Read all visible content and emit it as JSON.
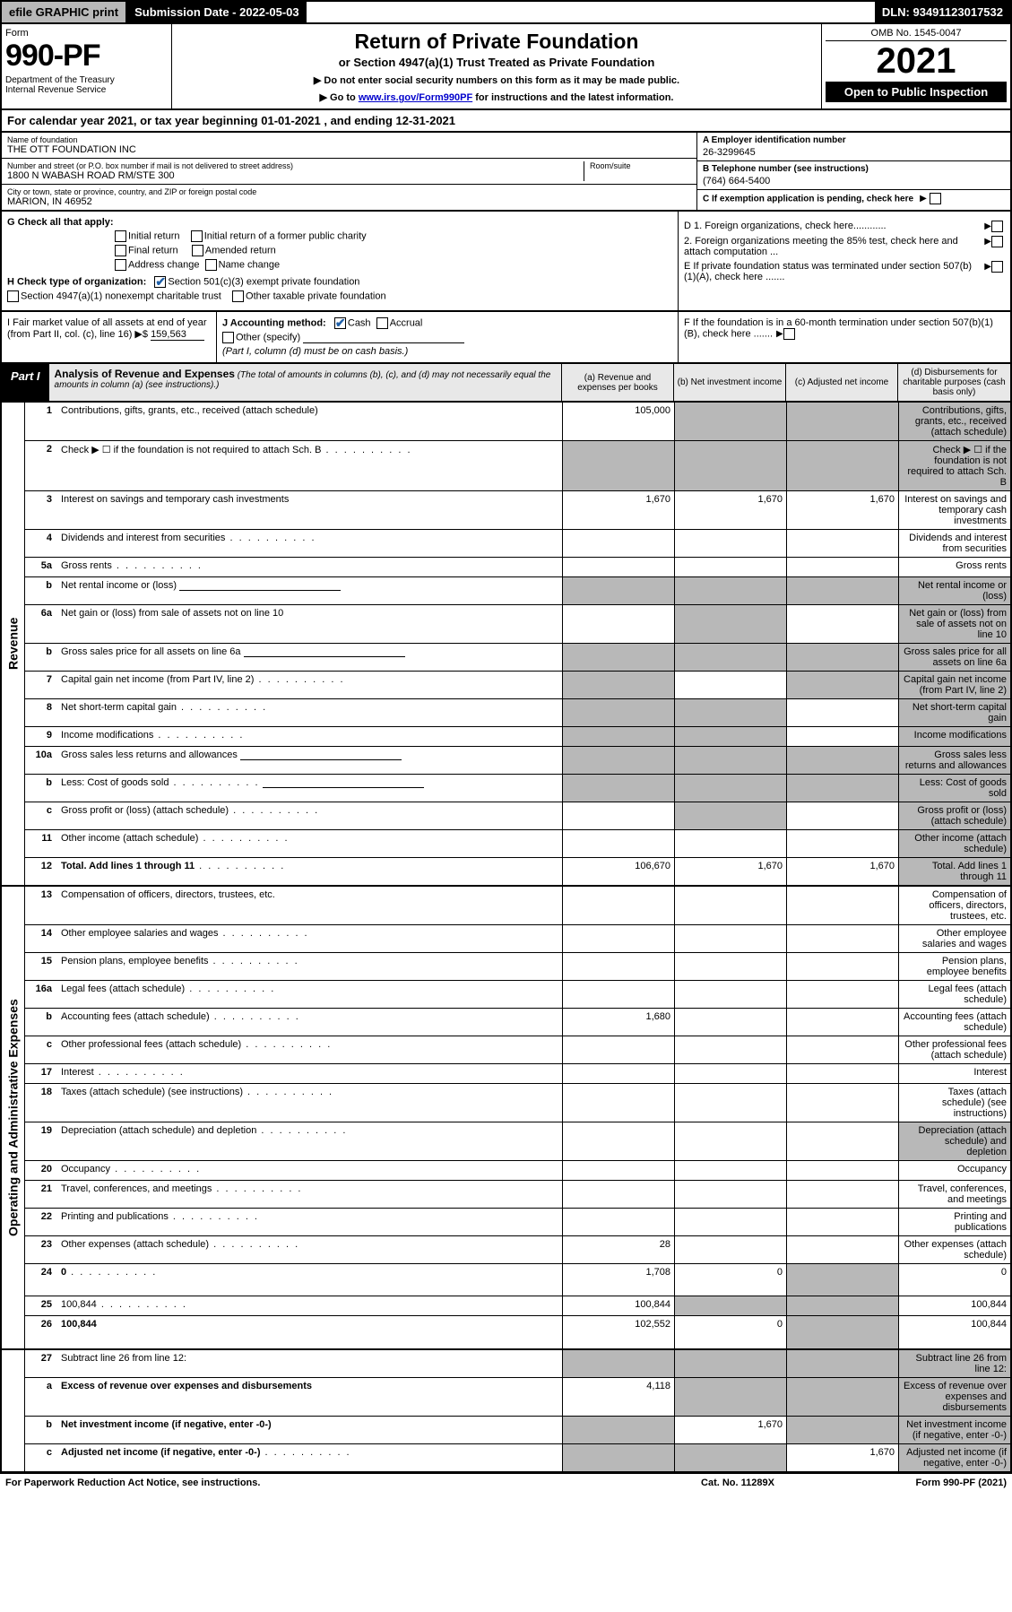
{
  "top": {
    "efile": "efile GRAPHIC print",
    "subdate_lbl": "Submission Date - ",
    "subdate": "2022-05-03",
    "dln_lbl": "DLN: ",
    "dln": "93491123017532"
  },
  "header": {
    "form": "Form",
    "formnum": "990-PF",
    "dept": "Department of the Treasury",
    "irs": "Internal Revenue Service",
    "title": "Return of Private Foundation",
    "subtitle": "or Section 4947(a)(1) Trust Treated as Private Foundation",
    "note1": "▶ Do not enter social security numbers on this form as it may be made public.",
    "note2_pre": "▶ Go to ",
    "note2_link": "www.irs.gov/Form990PF",
    "note2_post": " for instructions and the latest information.",
    "omb": "OMB No. 1545-0047",
    "year": "2021",
    "open": "Open to Public Inspection"
  },
  "calyear": {
    "text_pre": "For calendar year 2021, or tax year beginning ",
    "begin": "01-01-2021",
    "text_mid": " , and ending ",
    "end": "12-31-2021"
  },
  "entity": {
    "name_lbl": "Name of foundation",
    "name": "THE OTT FOUNDATION INC",
    "addr_lbl": "Number and street (or P.O. box number if mail is not delivered to street address)",
    "addr": "1800 N WABASH ROAD RM/STE 300",
    "room_lbl": "Room/suite",
    "city_lbl": "City or town, state or province, country, and ZIP or foreign postal code",
    "city": "MARION, IN  46952",
    "ein_lbl": "A Employer identification number",
    "ein": "26-3299645",
    "tel_lbl": "B Telephone number (see instructions)",
    "tel": "(764) 664-5400",
    "pending": "C If exemption application is pending, check here"
  },
  "g": {
    "lbl": "G Check all that apply:",
    "o1": "Initial return",
    "o2": "Initial return of a former public charity",
    "o3": "Final return",
    "o4": "Amended return",
    "o5": "Address change",
    "o6": "Name change"
  },
  "h": {
    "lbl": "H Check type of organization:",
    "o1": "Section 501(c)(3) exempt private foundation",
    "o2": "Section 4947(a)(1) nonexempt charitable trust",
    "o3": "Other taxable private foundation"
  },
  "d": {
    "d1": "D 1. Foreign organizations, check here............",
    "d2": "2. Foreign organizations meeting the 85% test, check here and attach computation ...",
    "e": "E  If private foundation status was terminated under section 507(b)(1)(A), check here .......",
    "f": "F  If the foundation is in a 60-month termination under section 507(b)(1)(B), check here ......."
  },
  "i": {
    "lbl": "I Fair market value of all assets at end of year (from Part II, col. (c), line 16) ▶$",
    "val": "159,563"
  },
  "j": {
    "lbl": "J Accounting method:",
    "cash": "Cash",
    "accrual": "Accrual",
    "other": "Other (specify)",
    "note": "(Part I, column (d) must be on cash basis.)"
  },
  "part1": {
    "lbl": "Part I",
    "title": "Analysis of Revenue and Expenses",
    "sub": " (The total of amounts in columns (b), (c), and (d) may not necessarily equal the amounts in column (a) (see instructions).)",
    "col_a": "(a)  Revenue and expenses per books",
    "col_b": "(b)  Net investment income",
    "col_c": "(c)  Adjusted net income",
    "col_d": "(d)  Disbursements for charitable purposes (cash basis only)"
  },
  "rot": {
    "rev": "Revenue",
    "exp": "Operating and Administrative Expenses"
  },
  "rows": {
    "r1": {
      "n": "1",
      "d": "Contributions, gifts, grants, etc., received (attach schedule)",
      "a": "105,000"
    },
    "r2": {
      "n": "2",
      "d": "Check ▶ ☐ if the foundation is not required to attach Sch. B"
    },
    "r3": {
      "n": "3",
      "d": "Interest on savings and temporary cash investments",
      "a": "1,670",
      "b": "1,670",
      "c": "1,670"
    },
    "r4": {
      "n": "4",
      "d": "Dividends and interest from securities"
    },
    "r5a": {
      "n": "5a",
      "d": "Gross rents"
    },
    "r5b": {
      "n": "b",
      "d": "Net rental income or (loss)"
    },
    "r6a": {
      "n": "6a",
      "d": "Net gain or (loss) from sale of assets not on line 10"
    },
    "r6b": {
      "n": "b",
      "d": "Gross sales price for all assets on line 6a"
    },
    "r7": {
      "n": "7",
      "d": "Capital gain net income (from Part IV, line 2)"
    },
    "r8": {
      "n": "8",
      "d": "Net short-term capital gain"
    },
    "r9": {
      "n": "9",
      "d": "Income modifications"
    },
    "r10a": {
      "n": "10a",
      "d": "Gross sales less returns and allowances"
    },
    "r10b": {
      "n": "b",
      "d": "Less: Cost of goods sold"
    },
    "r10c": {
      "n": "c",
      "d": "Gross profit or (loss) (attach schedule)"
    },
    "r11": {
      "n": "11",
      "d": "Other income (attach schedule)"
    },
    "r12": {
      "n": "12",
      "d": "Total. Add lines 1 through 11",
      "a": "106,670",
      "b": "1,670",
      "c": "1,670"
    },
    "r13": {
      "n": "13",
      "d": "Compensation of officers, directors, trustees, etc."
    },
    "r14": {
      "n": "14",
      "d": "Other employee salaries and wages"
    },
    "r15": {
      "n": "15",
      "d": "Pension plans, employee benefits"
    },
    "r16a": {
      "n": "16a",
      "d": "Legal fees (attach schedule)"
    },
    "r16b": {
      "n": "b",
      "d": "Accounting fees (attach schedule)",
      "a": "1,680"
    },
    "r16c": {
      "n": "c",
      "d": "Other professional fees (attach schedule)"
    },
    "r17": {
      "n": "17",
      "d": "Interest"
    },
    "r18": {
      "n": "18",
      "d": "Taxes (attach schedule) (see instructions)"
    },
    "r19": {
      "n": "19",
      "d": "Depreciation (attach schedule) and depletion"
    },
    "r20": {
      "n": "20",
      "d": "Occupancy"
    },
    "r21": {
      "n": "21",
      "d": "Travel, conferences, and meetings"
    },
    "r22": {
      "n": "22",
      "d": "Printing and publications"
    },
    "r23": {
      "n": "23",
      "d": "Other expenses (attach schedule)",
      "a": "28"
    },
    "r24": {
      "n": "24",
      "d": "0",
      "a": "1,708",
      "b": "0"
    },
    "r25": {
      "n": "25",
      "d": "100,844",
      "a": "100,844"
    },
    "r26": {
      "n": "26",
      "d": "100,844",
      "a": "102,552",
      "b": "0"
    },
    "r27": {
      "n": "27",
      "d": "Subtract line 26 from line 12:"
    },
    "r27a": {
      "n": "a",
      "d": "Excess of revenue over expenses and disbursements",
      "a": "4,118"
    },
    "r27b": {
      "n": "b",
      "d": "Net investment income (if negative, enter -0-)",
      "b": "1,670"
    },
    "r27c": {
      "n": "c",
      "d": "Adjusted net income (if negative, enter -0-)",
      "c": "1,670"
    }
  },
  "footer": {
    "f1": "For Paperwork Reduction Act Notice, see instructions.",
    "f2": "Cat. No. 11289X",
    "f3": "Form 990-PF (2021)"
  },
  "colors": {
    "shade": "#b8b8b8",
    "link": "#0000cc",
    "check": "#1e5fa8",
    "headbg": "#e8e8e8"
  }
}
